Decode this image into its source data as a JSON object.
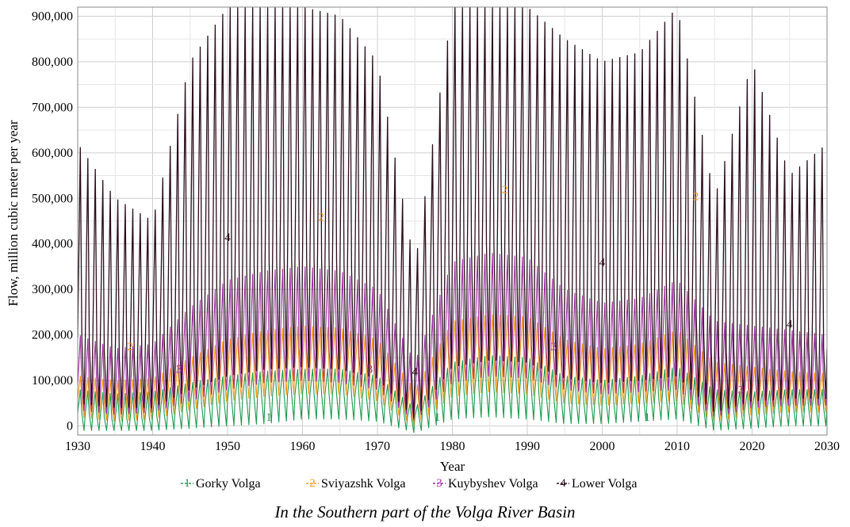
{
  "caption": "In the Southern part of the Volga River Basin",
  "chart_data": {
    "type": "line",
    "xlabel": "Year",
    "ylabel": "Flow, million cubic meter per year",
    "xlim": [
      1930,
      2030
    ],
    "ylim": [
      -20000,
      920000
    ],
    "x_ticks": [
      1930,
      1940,
      1950,
      1960,
      1970,
      1980,
      1990,
      2000,
      2010,
      2020,
      2030
    ],
    "x_tick_labels": [
      "1930",
      "1940",
      "1950",
      "1960",
      "1970",
      "1980",
      "1990",
      "2000",
      "2010",
      "2020",
      "2030"
    ],
    "y_ticks": [
      0,
      100000,
      200000,
      300000,
      400000,
      500000,
      600000,
      700000,
      800000,
      900000
    ],
    "y_tick_labels": [
      "0",
      "100,000",
      "200,000",
      "300,000",
      "400,000",
      "500,000",
      "600,000",
      "700,000",
      "800,000",
      "900,000"
    ],
    "grid": true,
    "legend_position": "bottom",
    "sampling": "seasonal (about 3 points per year: peak, mid, trough)",
    "series": [
      {
        "name": "Gorky Volga",
        "marker": "1",
        "color": "#1e9a50",
        "marker_points": [
          [
            1955.5,
            20000
          ],
          [
            1978,
            20000
          ],
          [
            2006,
            20000
          ]
        ],
        "x": [
          1930,
          1935,
          1940,
          1945,
          1950,
          1955,
          1960,
          1965,
          1970,
          1975,
          1980,
          1985,
          1990,
          1995,
          2000,
          2005,
          2010,
          2015,
          2020,
          2025,
          2030
        ],
        "peak": [
          80000,
          70000,
          75000,
          95000,
          110000,
          120000,
          125000,
          125000,
          110000,
          40000,
          140000,
          155000,
          150000,
          110000,
          100000,
          110000,
          130000,
          80000,
          75000,
          80000,
          80000
        ],
        "mid": [
          30000,
          15000,
          20000,
          40000,
          55000,
          65000,
          70000,
          70000,
          60000,
          15000,
          75000,
          85000,
          80000,
          55000,
          50000,
          55000,
          65000,
          30000,
          35000,
          40000,
          40000
        ],
        "trough": [
          -10000,
          -10000,
          -10000,
          -5000,
          0,
          5000,
          15000,
          15000,
          10000,
          -15000,
          15000,
          20000,
          15000,
          5000,
          5000,
          10000,
          15000,
          -10000,
          -5000,
          0,
          0
        ]
      },
      {
        "name": "Sviyazshk Volga",
        "marker": "2",
        "color": "#f39a1e",
        "marker_points": [
          [
            1937,
            175000
          ],
          [
            1962.5,
            460000
          ],
          [
            1987,
            520000
          ],
          [
            2012.5,
            505000
          ]
        ],
        "x": [
          1930,
          1935,
          1940,
          1945,
          1950,
          1955,
          1960,
          1965,
          1970,
          1975,
          1980,
          1985,
          1990,
          1995,
          2000,
          2005,
          2010,
          2015,
          2020,
          2025,
          2030
        ],
        "peak": [
          110000,
          100000,
          105000,
          150000,
          190000,
          210000,
          220000,
          215000,
          190000,
          80000,
          230000,
          245000,
          240000,
          190000,
          170000,
          180000,
          210000,
          140000,
          130000,
          120000,
          115000
        ],
        "mid": [
          60000,
          45000,
          50000,
          85000,
          110000,
          125000,
          130000,
          130000,
          110000,
          30000,
          135000,
          150000,
          145000,
          110000,
          100000,
          105000,
          120000,
          60000,
          70000,
          70000,
          65000
        ],
        "trough": [
          20000,
          10000,
          15000,
          35000,
          55000,
          65000,
          70000,
          70000,
          55000,
          0,
          65000,
          75000,
          70000,
          50000,
          45000,
          50000,
          55000,
          10000,
          25000,
          30000,
          30000
        ]
      },
      {
        "name": "Kuybyshev Volga",
        "marker": "3",
        "color": "#9b2f9e",
        "marker_points": [
          [
            1943.5,
            125000
          ],
          [
            1969,
            125000
          ],
          [
            1993.5,
            175000
          ],
          [
            2018.5,
            80000
          ]
        ],
        "x": [
          1930,
          1935,
          1940,
          1945,
          1950,
          1955,
          1960,
          1965,
          1970,
          1975,
          1980,
          1985,
          1990,
          1995,
          2000,
          2005,
          2010,
          2015,
          2020,
          2025,
          2030
        ],
        "peak": [
          200000,
          170000,
          180000,
          260000,
          320000,
          340000,
          350000,
          340000,
          300000,
          140000,
          360000,
          380000,
          370000,
          300000,
          270000,
          280000,
          320000,
          230000,
          220000,
          210000,
          200000
        ],
        "mid": [
          90000,
          70000,
          75000,
          120000,
          150000,
          165000,
          170000,
          165000,
          145000,
          50000,
          170000,
          185000,
          180000,
          145000,
          135000,
          140000,
          155000,
          80000,
          90000,
          90000,
          85000
        ],
        "trough": [
          35000,
          25000,
          30000,
          55000,
          80000,
          95000,
          100000,
          95000,
          80000,
          10000,
          95000,
          110000,
          105000,
          80000,
          70000,
          75000,
          80000,
          20000,
          40000,
          45000,
          45000
        ]
      },
      {
        "name": "Lower Volga",
        "marker": "4",
        "color": "#2a0e1c",
        "marker_points": [
          [
            1950,
            415000
          ],
          [
            1975,
            120000
          ],
          [
            2000,
            360000
          ],
          [
            2025,
            225000
          ]
        ],
        "x": [
          1930,
          1935,
          1940,
          1945,
          1950,
          1955,
          1960,
          1965,
          1970,
          1975,
          1980,
          1985,
          1990,
          1995,
          2000,
          2005,
          2010,
          2015,
          2020,
          2025,
          2030
        ],
        "peak": [
          620000,
          500000,
          450000,
          800000,
          920000,
          920000,
          920000,
          900000,
          800000,
          350000,
          920000,
          920000,
          920000,
          850000,
          800000,
          820000,
          920000,
          500000,
          800000,
          550000,
          620000
        ],
        "mid": [
          200000,
          150000,
          160000,
          260000,
          330000,
          360000,
          370000,
          360000,
          310000,
          100000,
          380000,
          400000,
          390000,
          310000,
          280000,
          290000,
          330000,
          150000,
          200000,
          180000,
          170000
        ],
        "trough": [
          50000,
          40000,
          40000,
          80000,
          110000,
          125000,
          130000,
          125000,
          105000,
          15000,
          130000,
          145000,
          140000,
          105000,
          95000,
          100000,
          110000,
          30000,
          55000,
          60000,
          60000
        ]
      }
    ]
  }
}
